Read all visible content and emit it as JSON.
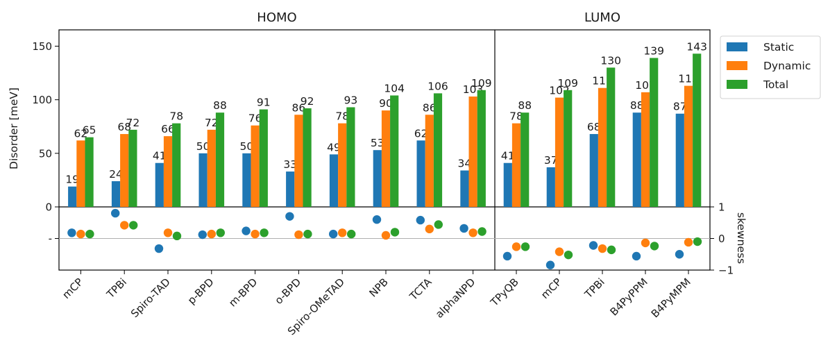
{
  "chart_data": {
    "type": "bar",
    "panels": [
      {
        "title": "HOMO",
        "categories": [
          "mCP",
          "TPBi",
          "Spiro-TAD",
          "p-BPD",
          "m-BPD",
          "o-BPD",
          "Spiro-OMeTAD",
          "NPB",
          "TCTA",
          "alphaNPD"
        ],
        "series": [
          {
            "name": "Static",
            "values": [
              19,
              24,
              41,
              50,
              50,
              33,
              49,
              53,
              62,
              34
            ]
          },
          {
            "name": "Dynamic",
            "values": [
              62,
              68,
              66,
              72,
              76,
              86,
              78,
              90,
              86,
              103
            ]
          },
          {
            "name": "Total",
            "values": [
              65,
              72,
              78,
              88,
              91,
              92,
              93,
              104,
              106,
              109
            ]
          }
        ],
        "skewness": [
          {
            "name": "Static",
            "values": [
              0.18,
              0.8,
              -0.32,
              0.12,
              0.24,
              0.7,
              0.14,
              0.6,
              0.58,
              0.32
            ]
          },
          {
            "name": "Dynamic",
            "values": [
              0.14,
              0.42,
              0.18,
              0.14,
              0.14,
              0.12,
              0.18,
              0.1,
              0.3,
              0.18
            ]
          },
          {
            "name": "Total",
            "values": [
              0.14,
              0.42,
              0.08,
              0.18,
              0.18,
              0.14,
              0.14,
              0.2,
              0.44,
              0.22
            ]
          }
        ]
      },
      {
        "title": "LUMO",
        "categories": [
          "TPyQB",
          "mCP",
          "TPBi",
          "B4PyPPM",
          "B4PyMPM"
        ],
        "series": [
          {
            "name": "Static",
            "values": [
              41,
              37,
              68,
              88,
              87
            ]
          },
          {
            "name": "Dynamic",
            "values": [
              78,
              102,
              111,
              107,
              113
            ]
          },
          {
            "name": "Total",
            "values": [
              88,
              109,
              130,
              139,
              143
            ]
          }
        ],
        "skewness": [
          {
            "name": "Static",
            "values": [
              -0.56,
              -0.84,
              -0.22,
              -0.56,
              -0.5
            ]
          },
          {
            "name": "Dynamic",
            "values": [
              -0.26,
              -0.42,
              -0.32,
              -0.14,
              -0.12
            ]
          },
          {
            "name": "Total",
            "values": [
              -0.26,
              -0.52,
              -0.36,
              -0.24,
              -0.1
            ]
          }
        ]
      }
    ],
    "ylabel": "Disorder [meV]",
    "ylim": [
      0,
      165
    ],
    "yticks": [
      "150",
      "100",
      "50",
      "0"
    ],
    "y2label": "skewness",
    "y2lim": [
      -1,
      1
    ],
    "y2ticks": [
      "1",
      "0",
      "−1"
    ],
    "legend": [
      "Static",
      "Dynamic",
      "Total"
    ],
    "legend_position": "right-top-outside",
    "colors": {
      "Static": "#1f77b4",
      "Dynamic": "#ff7f0e",
      "Total": "#2ca02c"
    }
  }
}
